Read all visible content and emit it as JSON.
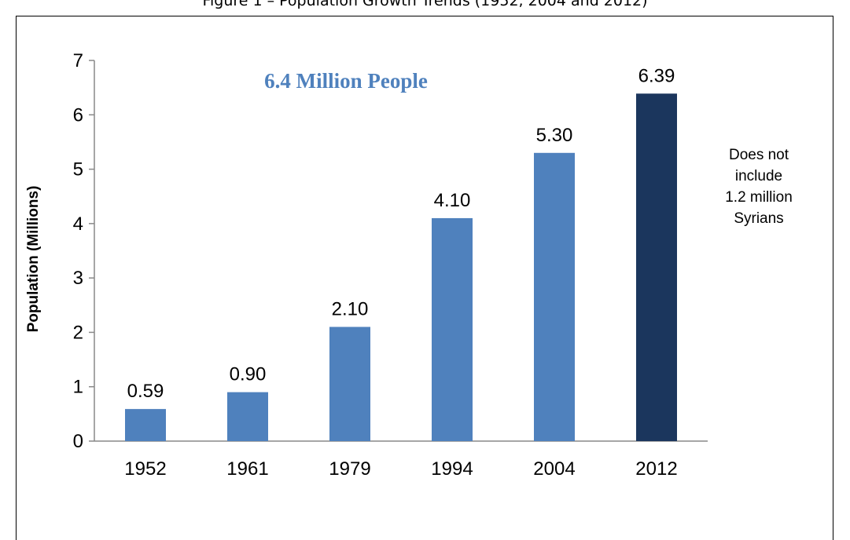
{
  "caption": "Figure 1 – Population Growth Trends (1952, 2004 and 2012)",
  "headline": "6.4 Million People",
  "note_lines": [
    "Does not",
    "include",
    "1.2 million",
    "Syrians"
  ],
  "colors": {
    "bar": "#4f81bd",
    "highlight_bar": "#1b365d",
    "headline": "#4f81bd",
    "axis": "#888888"
  },
  "chart_data": {
    "type": "bar",
    "categories": [
      "1952",
      "1961",
      "1979",
      "1994",
      "2004",
      "2012"
    ],
    "values": [
      0.59,
      0.9,
      2.1,
      4.1,
      5.3,
      6.39
    ],
    "data_labels": [
      "0.59",
      "0.90",
      "2.10",
      "4.10",
      "5.30",
      "6.39"
    ],
    "highlight_index": 5,
    "title": "",
    "xlabel": "",
    "ylabel": "Population (Millions)",
    "ylim": [
      0,
      7
    ],
    "yticks": [
      0,
      1,
      2,
      3,
      4,
      5,
      6,
      7
    ],
    "grid": false,
    "legend": "none"
  }
}
